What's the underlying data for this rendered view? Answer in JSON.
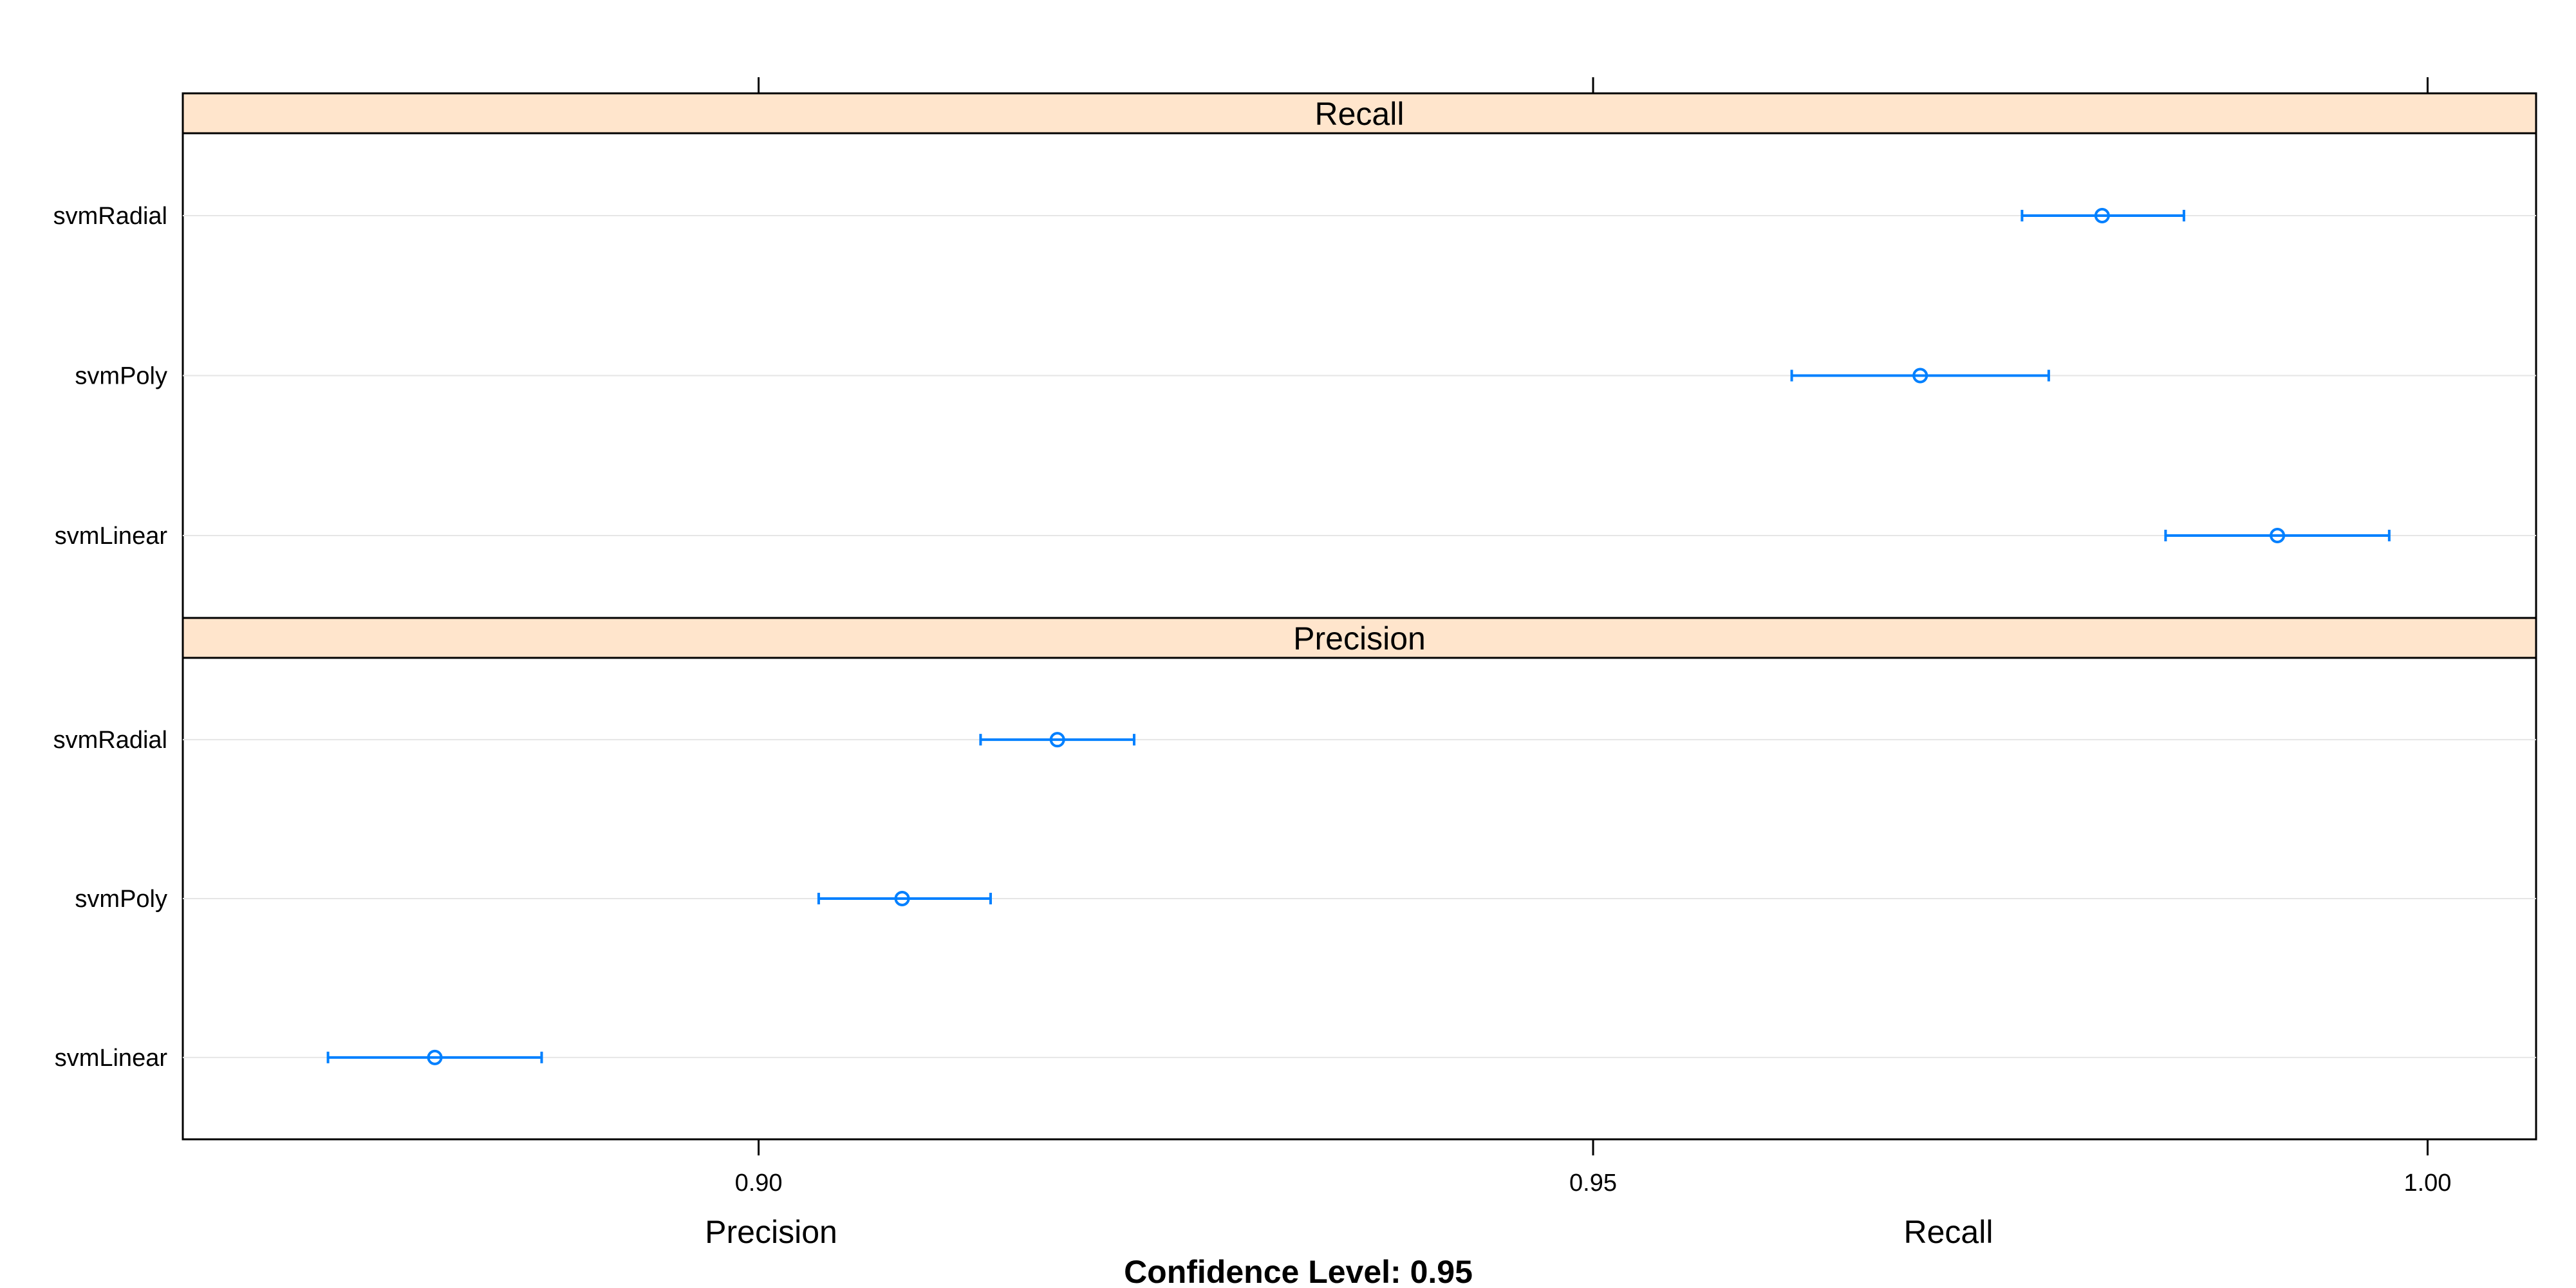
{
  "chart_data": {
    "type": "dotplot",
    "caption": "Confidence Level: 0.95",
    "xlabels": [
      "Precision",
      "Recall"
    ],
    "xlim": [
      0.8655,
      1.0065
    ],
    "ticks": [
      {
        "value": 0.9,
        "label": "0.90"
      },
      {
        "value": 0.95,
        "label": "0.95"
      },
      {
        "value": 1.0,
        "label": "1.00"
      }
    ],
    "grid": true,
    "categories": [
      "svmRadial",
      "svmPoly",
      "svmLinear"
    ],
    "panels": [
      {
        "name": "Recall",
        "rows": [
          {
            "category": "svmRadial",
            "estimate": 0.9805,
            "lower": 0.9757,
            "upper": 0.9854
          },
          {
            "category": "svmPoly",
            "estimate": 0.9696,
            "lower": 0.9619,
            "upper": 0.9773
          },
          {
            "category": "svmLinear",
            "estimate": 0.991,
            "lower": 0.9843,
            "upper": 0.9977
          }
        ]
      },
      {
        "name": "Precision",
        "rows": [
          {
            "category": "svmRadial",
            "estimate": 0.9179,
            "lower": 0.9133,
            "upper": 0.9225
          },
          {
            "category": "svmPoly",
            "estimate": 0.9086,
            "lower": 0.9036,
            "upper": 0.9139
          },
          {
            "category": "svmLinear",
            "estimate": 0.8806,
            "lower": 0.8742,
            "upper": 0.887
          }
        ]
      }
    ],
    "colors": {
      "series": "#0080ff",
      "strip": "#ffe5cc",
      "grid": "#e6e6e6",
      "frame": "#000000"
    }
  }
}
